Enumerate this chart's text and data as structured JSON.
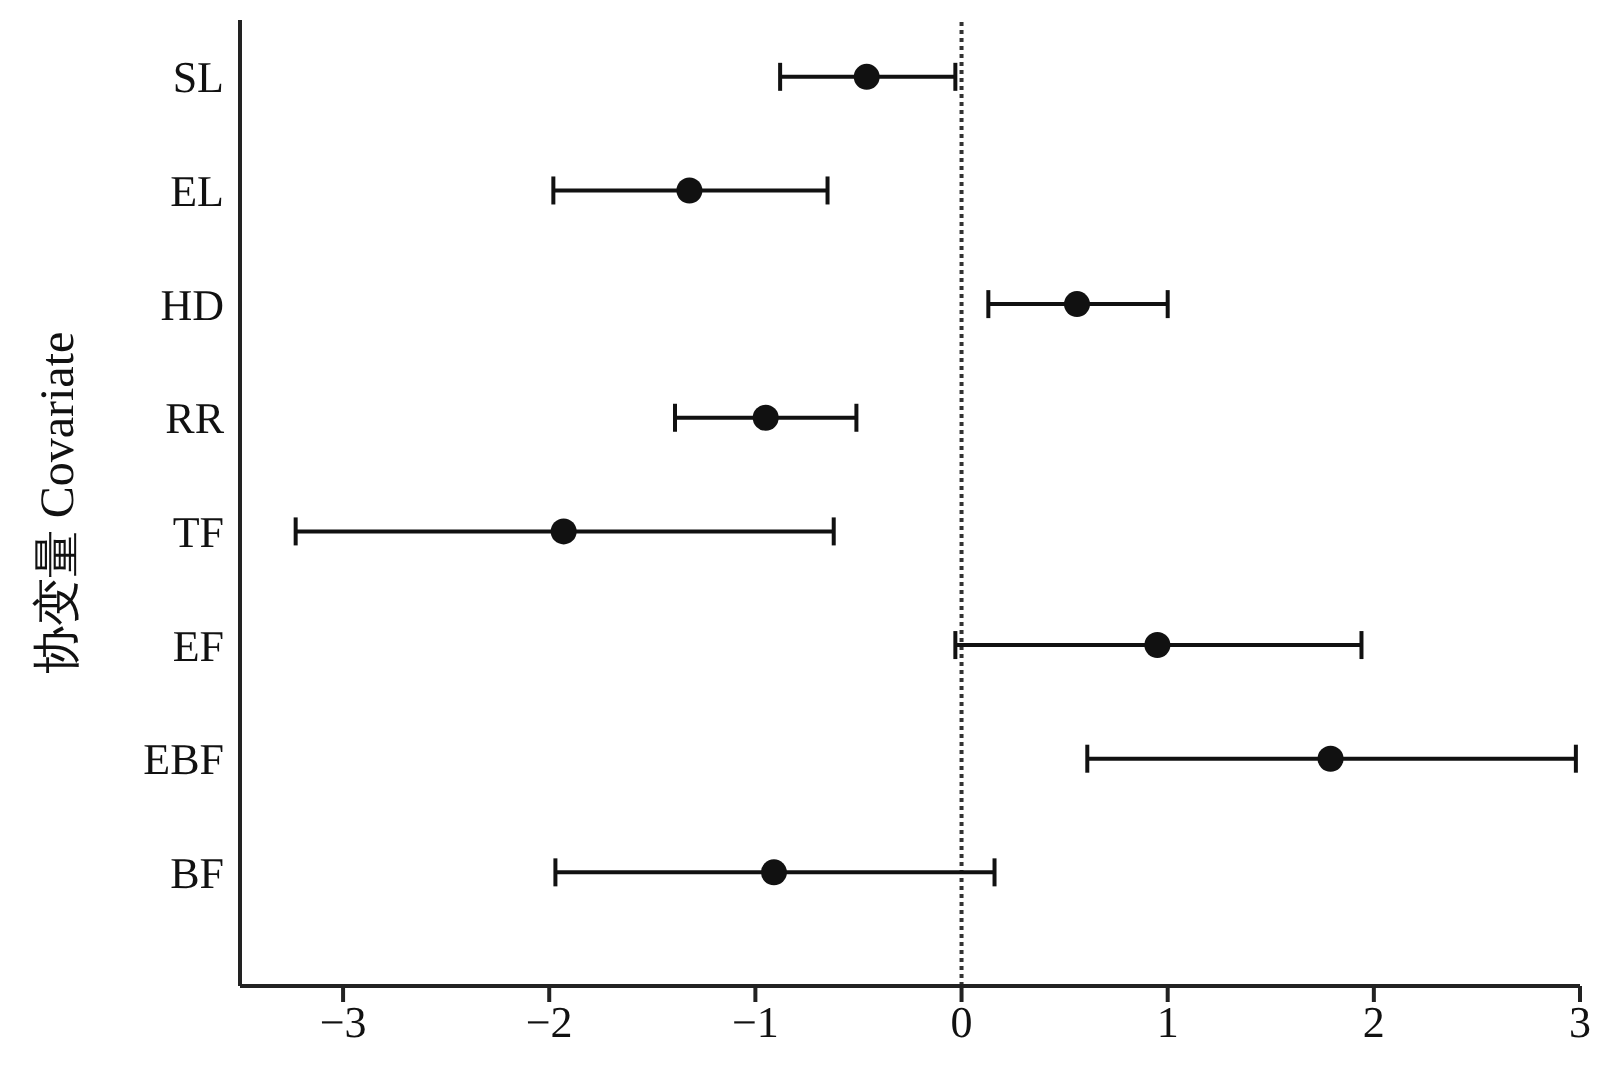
{
  "chart_data": {
    "type": "scatter",
    "orientation": "horizontal",
    "ylabel": "协变量 Covariate",
    "categories": [
      "SL",
      "EL",
      "HD",
      "RR",
      "TF",
      "EF",
      "EBF",
      "BF"
    ],
    "series": [
      {
        "color": "#111111",
        "marker": "circle",
        "values": [
          -0.46,
          -1.32,
          0.56,
          -0.95,
          -1.93,
          0.95,
          1.79,
          -0.91
        ],
        "errors": [
          [
            -0.88,
            -0.03
          ],
          [
            -1.98,
            -0.65
          ],
          [
            0.13,
            1.0
          ],
          [
            -1.39,
            -0.51
          ],
          [
            -3.23,
            -0.62
          ],
          [
            -0.03,
            1.94
          ],
          [
            0.61,
            2.98
          ],
          [
            -1.97,
            0.16
          ]
        ]
      }
    ],
    "xlim": [
      -3.5,
      3
    ],
    "xticks": [
      {
        "value": -3,
        "label": "−3"
      },
      {
        "value": -2,
        "label": "−2"
      },
      {
        "value": -1,
        "label": "−1"
      },
      0,
      1,
      2,
      3
    ],
    "ref_lines": [
      {
        "axis": "x",
        "value": 0,
        "color": "#333333",
        "line_style": "dotted"
      }
    ],
    "grid": false
  }
}
